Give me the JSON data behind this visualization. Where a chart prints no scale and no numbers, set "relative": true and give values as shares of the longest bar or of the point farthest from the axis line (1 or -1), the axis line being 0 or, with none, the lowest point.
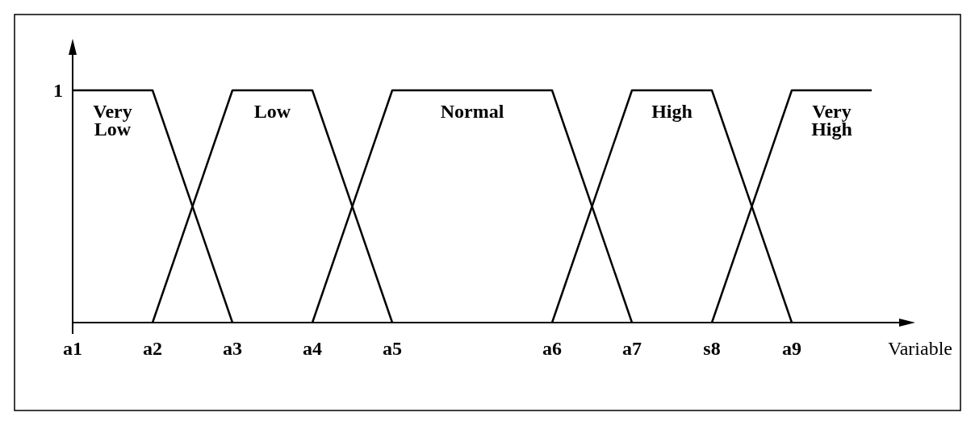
{
  "chart_data": {
    "type": "line",
    "relative": true,
    "xlabel": "Variable",
    "categories": [
      "a1",
      "a2",
      "a3",
      "a4",
      "a5",
      null,
      "a6",
      "a7",
      "s8",
      "a9",
      null
    ],
    "annotations": [
      {
        "text": "1",
        "x": "a1",
        "y": 1
      }
    ],
    "grid": false,
    "legend": false,
    "marker": "none",
    "line_style": "solid",
    "series": [
      {
        "name": "Very Low",
        "color": "#000000",
        "values": [
          1,
          1,
          0,
          null,
          null,
          null,
          null,
          null,
          null,
          null,
          null
        ]
      },
      {
        "name": "Low",
        "color": "#000000",
        "values": [
          null,
          0,
          1,
          1,
          0,
          null,
          null,
          null,
          null,
          null,
          null
        ]
      },
      {
        "name": "Normal",
        "color": "#000000",
        "values": [
          null,
          null,
          null,
          0,
          1,
          1,
          1,
          0,
          null,
          null,
          null
        ]
      },
      {
        "name": "High",
        "color": "#000000",
        "values": [
          null,
          null,
          null,
          null,
          null,
          null,
          0,
          1,
          1,
          0,
          null
        ]
      },
      {
        "name": "Very High",
        "color": "#000000",
        "values": [
          null,
          null,
          null,
          null,
          null,
          null,
          null,
          null,
          0,
          1,
          1
        ]
      }
    ]
  }
}
